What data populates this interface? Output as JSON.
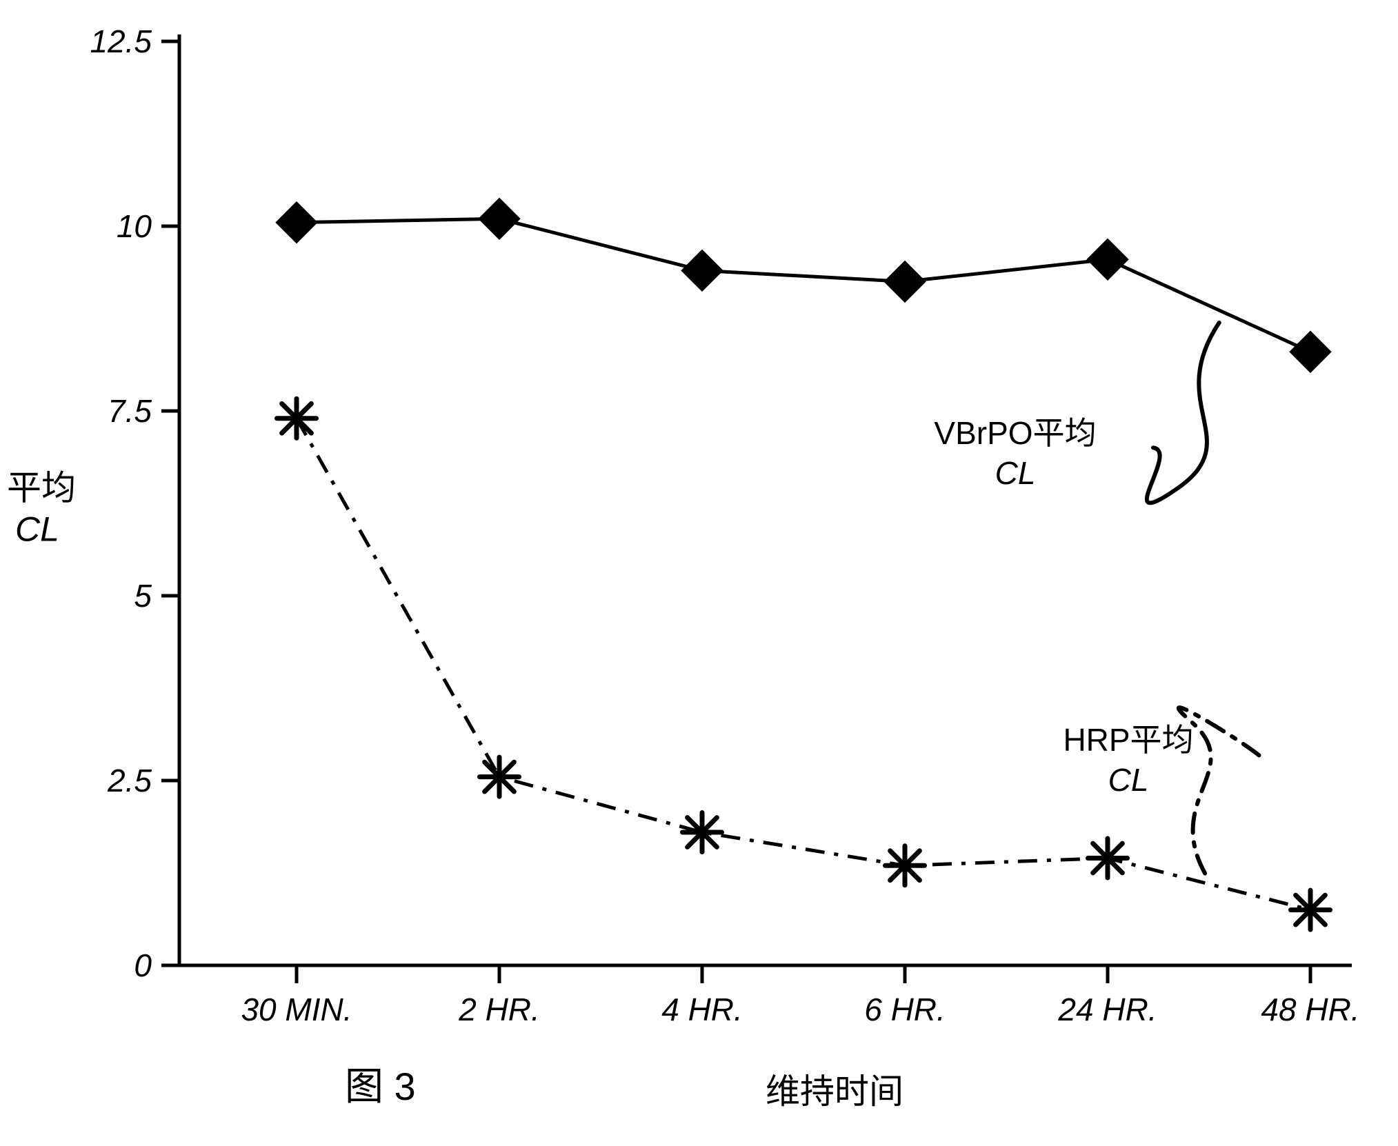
{
  "chart": {
    "type": "line",
    "background_color": "#ffffff",
    "axis_color": "#000000",
    "axis_stroke_width": 5,
    "series_stroke_width": 5,
    "dash_pattern": "28 14 6 14",
    "marker_size": 30,
    "ylim": [
      0,
      12.5
    ],
    "ytick_step": 2.5,
    "yticks": [
      "0",
      "2.5",
      "5",
      "7.5",
      "10",
      "12.5"
    ],
    "categories": [
      "30 MIN.",
      "2 HR.",
      "4 HR.",
      "6 HR.",
      "24 HR.",
      "48 HR."
    ],
    "y_axis_title_line1": "平均",
    "y_axis_title_line2": "CL",
    "x_axis_title": "维持时间",
    "figure_caption": "图  3",
    "series": [
      {
        "name": "VBrPO平均",
        "label_line1": "VBrPO平均",
        "label_line2": "CL",
        "marker": "diamond",
        "line_style": "solid",
        "color": "#000000",
        "values": [
          10.05,
          10.1,
          9.4,
          9.25,
          9.55,
          8.3
        ]
      },
      {
        "name": "HRP平均",
        "label_line1": "HRP平均",
        "label_line2": "CL",
        "marker": "asterisk",
        "line_style": "dashdot",
        "color": "#000000",
        "values": [
          7.4,
          2.55,
          1.8,
          1.35,
          1.45,
          0.75
        ]
      }
    ]
  }
}
